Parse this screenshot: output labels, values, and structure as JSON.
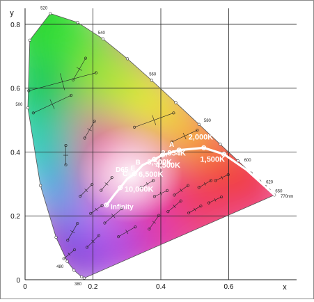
{
  "chart_data": {
    "type": "scatter",
    "title": "",
    "xlabel": "x",
    "ylabel": "y",
    "xlim": [
      0,
      0.8
    ],
    "ylim": [
      0,
      0.85
    ],
    "grid": true,
    "x_ticks": [
      {
        "value": 0,
        "label": "0"
      },
      {
        "value": 0.2,
        "label": "0.2"
      },
      {
        "value": 0.4,
        "label": "0.4"
      },
      {
        "value": 0.6,
        "label": "0.6"
      }
    ],
    "y_ticks": [
      {
        "value": 0,
        "label": "0"
      },
      {
        "value": 0.2,
        "label": "0.2"
      },
      {
        "value": 0.4,
        "label": "0.4"
      },
      {
        "value": 0.6,
        "label": "0.6"
      },
      {
        "value": 0.8,
        "label": "0.8"
      }
    ],
    "spectral_locus": [
      {
        "x": 0.1741,
        "y": 0.005,
        "label": "380"
      },
      {
        "x": 0.1666,
        "y": 0.0089
      },
      {
        "x": 0.144,
        "y": 0.0297
      },
      {
        "x": 0.1241,
        "y": 0.0578,
        "label": "480"
      },
      {
        "x": 0.0913,
        "y": 0.1327
      },
      {
        "x": 0.0454,
        "y": 0.295
      },
      {
        "x": 0.0082,
        "y": 0.5384,
        "label": "500"
      },
      {
        "x": 0.0139,
        "y": 0.7502
      },
      {
        "x": 0.0743,
        "y": 0.8338,
        "label": "520"
      },
      {
        "x": 0.1547,
        "y": 0.8059
      },
      {
        "x": 0.2296,
        "y": 0.7543,
        "label": "540"
      },
      {
        "x": 0.3016,
        "y": 0.6923
      },
      {
        "x": 0.3731,
        "y": 0.6245,
        "label": "560"
      },
      {
        "x": 0.4441,
        "y": 0.5547
      },
      {
        "x": 0.5125,
        "y": 0.4866,
        "label": "580"
      },
      {
        "x": 0.5752,
        "y": 0.4242
      },
      {
        "x": 0.627,
        "y": 0.3725,
        "label": "600"
      },
      {
        "x": 0.6658,
        "y": 0.334
      },
      {
        "x": 0.6915,
        "y": 0.3083,
        "label": "620"
      },
      {
        "x": 0.7079,
        "y": 0.292
      },
      {
        "x": 0.719,
        "y": 0.2809,
        "label": "650"
      },
      {
        "x": 0.7347,
        "y": 0.2653,
        "label": "770nm"
      }
    ],
    "planckian_locus": [
      {
        "x": 0.2399,
        "y": 0.2341,
        "label": "Infinity"
      },
      {
        "x": 0.265,
        "y": 0.269
      },
      {
        "x": 0.2807,
        "y": 0.2883,
        "label": "10,000K"
      },
      {
        "x": 0.3,
        "y": 0.315
      },
      {
        "x": 0.3221,
        "y": 0.3318,
        "label": "6,500K"
      },
      {
        "x": 0.3457,
        "y": 0.3586
      },
      {
        "x": 0.3805,
        "y": 0.3768,
        "label": "4,500K"
      },
      {
        "x": 0.4052,
        "y": 0.3907,
        "label": "3,500K"
      },
      {
        "x": 0.454,
        "y": 0.4061,
        "label": "2,854K"
      },
      {
        "x": 0.5265,
        "y": 0.4133,
        "label": "2,000K"
      },
      {
        "x": 0.5857,
        "y": 0.3931,
        "label": "1,500K"
      },
      {
        "x": 0.653,
        "y": 0.344
      },
      {
        "x": 0.7347,
        "y": 0.2653
      }
    ],
    "point_labels": [
      {
        "text": "A",
        "x": 0.4476,
        "y": 0.4074
      },
      {
        "text": "B",
        "x": 0.3484,
        "y": 0.3516
      },
      {
        "text": "C",
        "x": 0.3101,
        "y": 0.3162
      },
      {
        "text": "D65",
        "x": 0.3127,
        "y": 0.329
      },
      {
        "text": "E",
        "x": 0.3333,
        "y": 0.3333
      }
    ]
  }
}
